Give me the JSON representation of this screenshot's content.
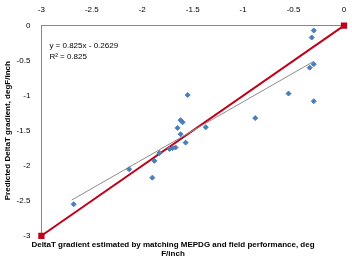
{
  "chart_data": {
    "type": "scatter",
    "x_label": "DeltaT gradient estimated by matching MEPDG and field performance, deg F/inch",
    "y_label": "Predicted DeltaT gradient, degF/inch",
    "annotations": [
      "y = 0.825x - 0.2629",
      "R² = 0.825"
    ],
    "xlim": [
      -3,
      0
    ],
    "xticks": [
      -3,
      -2.5,
      -2,
      -1.5,
      -1,
      -0.5,
      0
    ],
    "ylim": [
      -3,
      0
    ],
    "yticks": [
      -3,
      -2.5,
      -2,
      -1.5,
      -1,
      -0.5,
      0
    ],
    "grid": false,
    "series": [
      {
        "type": "scatter",
        "color": "#4a7ebb",
        "marker": "diamond",
        "x": [
          -2.68,
          -2.13,
          -1.9,
          -1.88,
          -1.83,
          -1.73,
          -1.7,
          -1.67,
          -1.65,
          -1.62,
          -1.62,
          -1.6,
          -1.57,
          -1.55,
          -1.37,
          -0.88,
          -0.55,
          -0.34,
          -0.3,
          -0.32,
          -0.3,
          -0.3
        ],
        "values": [
          -2.55,
          -2.05,
          -2.17,
          -1.93,
          -1.82,
          -1.76,
          -1.75,
          -1.74,
          -1.46,
          -1.55,
          -1.35,
          -1.38,
          -1.67,
          -0.99,
          -1.45,
          -1.32,
          -0.97,
          -0.6,
          -0.55,
          -0.17,
          -0.07,
          -1.08
        ]
      },
      {
        "type": "line",
        "color": "#8c8c8c",
        "marker": "none",
        "line_style": "solid",
        "x": [
          -2.7,
          -0.3
        ],
        "values": [
          -2.49,
          -0.51
        ]
      },
      {
        "type": "line",
        "color": "#c0001a",
        "marker": "square",
        "line_style": "solid",
        "x": [
          -3,
          0
        ],
        "values": [
          -3,
          0
        ]
      }
    ]
  }
}
